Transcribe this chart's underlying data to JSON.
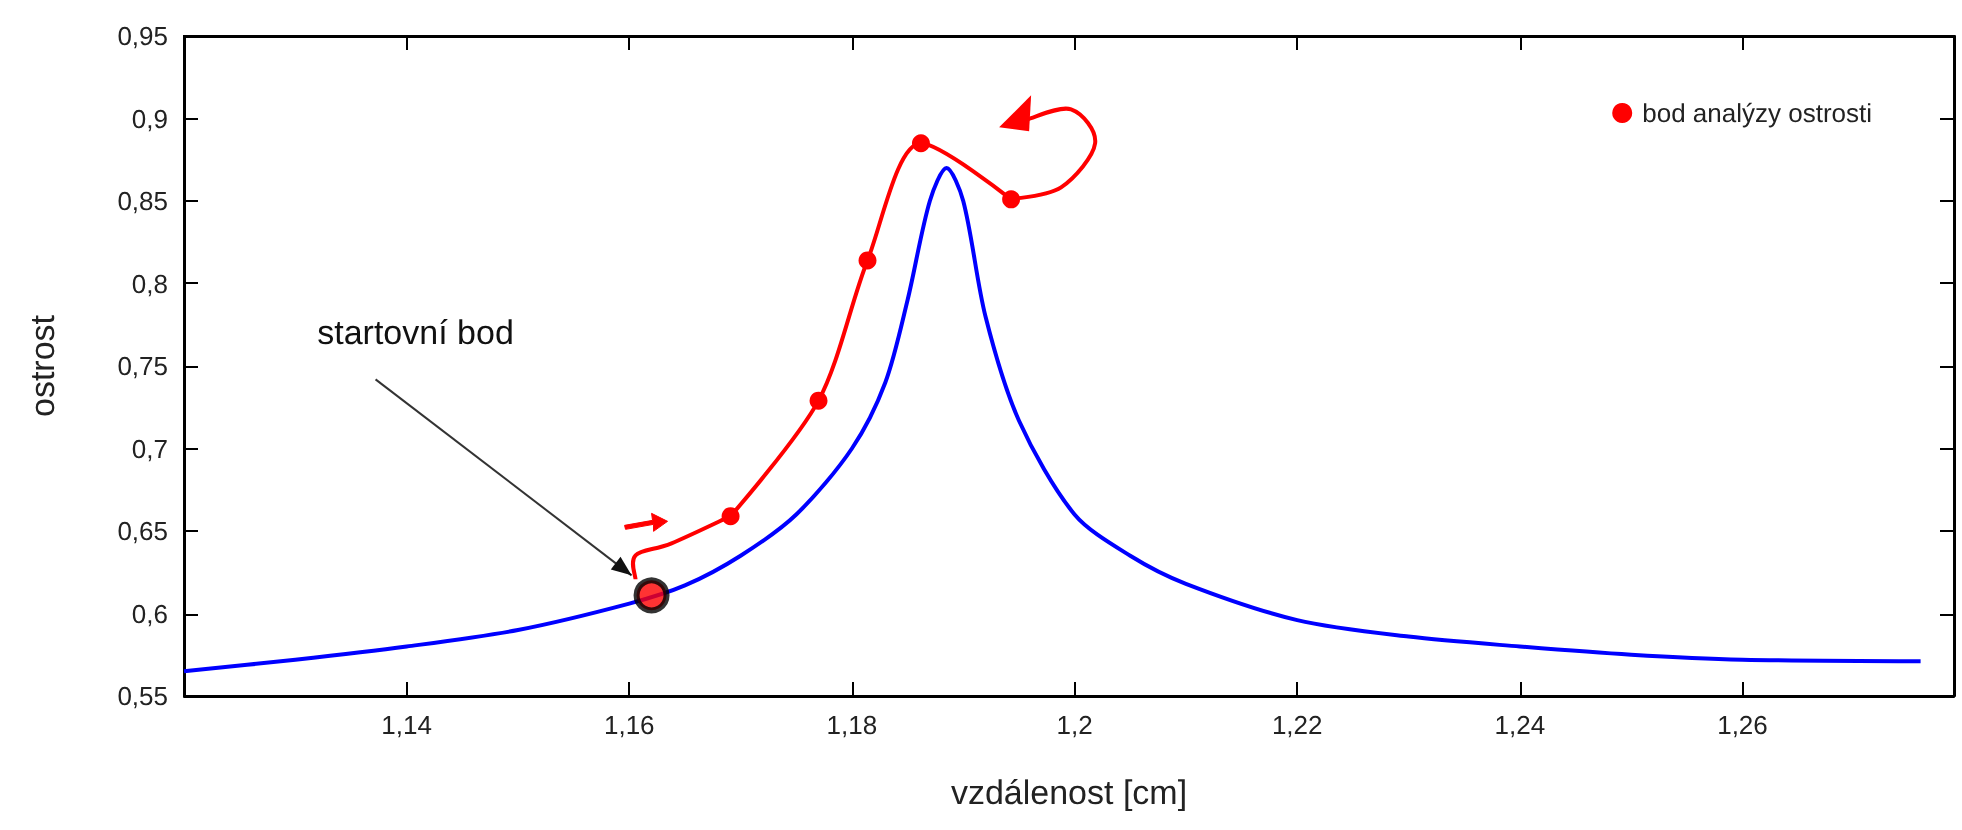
{
  "chart_data": {
    "type": "line",
    "xlabel": "vzdálenost [cm]",
    "ylabel": "ostrost",
    "xlim": [
      1.12,
      1.279
    ],
    "ylim": [
      0.55,
      0.95
    ],
    "xticks": [
      {
        "value": 1.14,
        "label": "1,14"
      },
      {
        "value": 1.16,
        "label": "1,16"
      },
      {
        "value": 1.18,
        "label": "1,18"
      },
      {
        "value": 1.2,
        "label": "1,2"
      },
      {
        "value": 1.22,
        "label": "1,22"
      },
      {
        "value": 1.24,
        "label": "1,24"
      },
      {
        "value": 1.26,
        "label": "1,26"
      }
    ],
    "yticks": [
      {
        "value": 0.55,
        "label": "0,55"
      },
      {
        "value": 0.6,
        "label": "0,6"
      },
      {
        "value": 0.65,
        "label": "0,65"
      },
      {
        "value": 0.7,
        "label": "0,7"
      },
      {
        "value": 0.75,
        "label": "0,75"
      },
      {
        "value": 0.8,
        "label": "0,8"
      },
      {
        "value": 0.85,
        "label": "0,85"
      },
      {
        "value": 0.9,
        "label": "0,9"
      },
      {
        "value": 0.95,
        "label": "0,95"
      }
    ],
    "grid": false,
    "legend": "top right",
    "series": [
      {
        "color": "#0000ff",
        "marker": "none",
        "x": [
          1.12,
          1.13,
          1.14,
          1.15,
          1.16,
          1.165,
          1.17,
          1.175,
          1.18,
          1.183,
          1.185,
          1.187,
          1.1885,
          1.19,
          1.192,
          1.195,
          1.2,
          1.205,
          1.21,
          1.22,
          1.23,
          1.24,
          1.25,
          1.26,
          1.276
        ],
        "values": [
          0.565,
          0.572,
          0.58,
          0.59,
          0.606,
          0.617,
          0.635,
          0.66,
          0.7,
          0.74,
          0.79,
          0.85,
          0.87,
          0.85,
          0.78,
          0.717,
          0.66,
          0.635,
          0.618,
          0.596,
          0.586,
          0.58,
          0.575,
          0.572,
          0.571
        ]
      },
      {
        "type": "line",
        "name": "bod analýzy ostrosti",
        "color": "#ff0000",
        "marker": "circle",
        "x": [
          1.1691,
          1.177,
          1.1814,
          1.1862,
          1.1943
        ],
        "values": [
          0.659,
          0.729,
          0.814,
          0.885,
          0.851
        ]
      },
      {
        "type": "scatter",
        "color": "#ff0000",
        "marker": "circle",
        "x": [
          1.162
        ],
        "values": [
          0.611
        ]
      }
    ],
    "annotations": [
      "startovní bod"
    ]
  }
}
